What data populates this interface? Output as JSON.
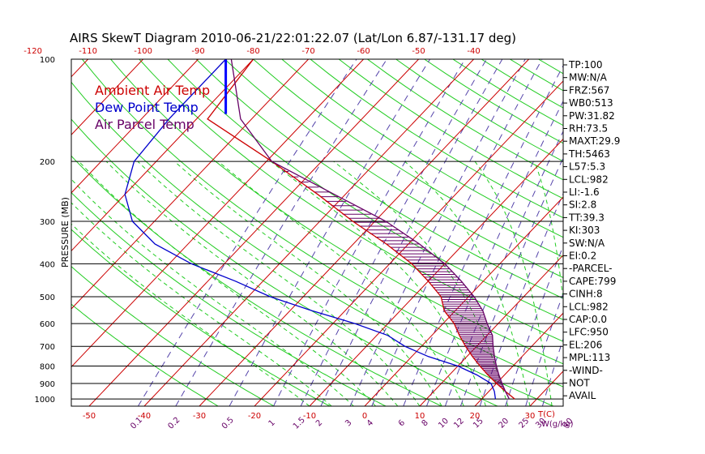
{
  "chart_data": {
    "type": "skewt",
    "title": "AIRS SkewT Diagram 2010-06-21/22:01:22.07 (Lat/Lon 6.87/-131.17 deg)",
    "ylabel": "PRESSURE (MB)",
    "xlabel": "T(C)",
    "mixing_ratio_unit": "W(g/kg)",
    "pressure_levels": [
      100,
      200,
      300,
      400,
      500,
      600,
      700,
      800,
      900,
      1000
    ],
    "pressure_tick_labels": [
      "100",
      "200",
      "300",
      "400",
      "500",
      "600",
      "700",
      "800",
      "900",
      "1000"
    ],
    "top_temp_ticks": [
      -120,
      -110,
      -100,
      -90,
      -80,
      -70,
      -60,
      -50,
      -40
    ],
    "bottom_temp_ticks": [
      -50,
      -40,
      -30,
      -20,
      -10,
      0,
      10,
      20,
      30
    ],
    "mixing_ratio_ticks": [
      "0.1",
      "0.2",
      "0.5",
      "1",
      "1.5",
      "2",
      "3",
      "4",
      "6",
      "8",
      "10",
      "12",
      "15",
      "20",
      "25",
      "30",
      "40"
    ],
    "legend": [
      {
        "label": "Ambient Air Temp",
        "color": "#cc0000"
      },
      {
        "label": "Dew Point Temp",
        "color": "#0000cc"
      },
      {
        "label": "Air Parcel Temp",
        "color": "#660066"
      }
    ],
    "series": [
      {
        "name": "Ambient Air Temp",
        "color": "#cc0000",
        "points": [
          [
            100,
            -80
          ],
          [
            150,
            -78
          ],
          [
            200,
            -59
          ],
          [
            250,
            -45
          ],
          [
            300,
            -34
          ],
          [
            350,
            -24
          ],
          [
            400,
            -16
          ],
          [
            450,
            -10
          ],
          [
            500,
            -5
          ],
          [
            550,
            -2
          ],
          [
            600,
            2
          ],
          [
            650,
            5
          ],
          [
            700,
            8
          ],
          [
            750,
            11
          ],
          [
            800,
            14
          ],
          [
            850,
            17
          ],
          [
            900,
            20
          ],
          [
            950,
            23
          ],
          [
            1000,
            26
          ]
        ]
      },
      {
        "name": "Dew Point Temp",
        "color": "#0000cc",
        "points": [
          [
            100,
            -85
          ],
          [
            150,
            -85
          ],
          [
            200,
            -84
          ],
          [
            250,
            -80
          ],
          [
            300,
            -74
          ],
          [
            350,
            -66
          ],
          [
            400,
            -56
          ],
          [
            450,
            -45
          ],
          [
            500,
            -36
          ],
          [
            550,
            -26
          ],
          [
            600,
            -16
          ],
          [
            650,
            -8
          ],
          [
            700,
            -3
          ],
          [
            750,
            3
          ],
          [
            800,
            10
          ],
          [
            850,
            15
          ],
          [
            900,
            19
          ],
          [
            950,
            21
          ],
          [
            1000,
            22.5
          ]
        ]
      },
      {
        "name": "Air Parcel Temp",
        "color": "#660066",
        "points": [
          [
            100,
            -84
          ],
          [
            150,
            -72
          ],
          [
            200,
            -59
          ],
          [
            250,
            -42
          ],
          [
            300,
            -28
          ],
          [
            350,
            -18
          ],
          [
            400,
            -10
          ],
          [
            450,
            -4
          ],
          [
            500,
            1
          ],
          [
            550,
            5
          ],
          [
            600,
            8
          ],
          [
            650,
            11
          ],
          [
            700,
            13
          ],
          [
            750,
            15
          ],
          [
            800,
            17
          ],
          [
            850,
            19
          ],
          [
            900,
            21
          ],
          [
            950,
            23
          ],
          [
            1000,
            25
          ]
        ]
      }
    ],
    "wind_barb_level_mb": 100,
    "stats": [
      "TP:100",
      "MW:N/A",
      "FRZ:567",
      "WB0:513",
      "PW:31.82",
      "RH:73.5",
      "MAXT:29.9",
      "TH:5463",
      "L57:5.3",
      "LCL:982",
      "LI:-1.6",
      "SI:2.8",
      "TT:39.3",
      "KI:303",
      "SW:N/A",
      "EI:0.2",
      "-PARCEL-",
      "CAPE:799",
      "CINH:8",
      "LCL:982",
      "CAP:0.0",
      "LFC:950",
      "EL:206",
      "MPL:113",
      "-WIND-",
      "NOT",
      "AVAIL"
    ]
  }
}
